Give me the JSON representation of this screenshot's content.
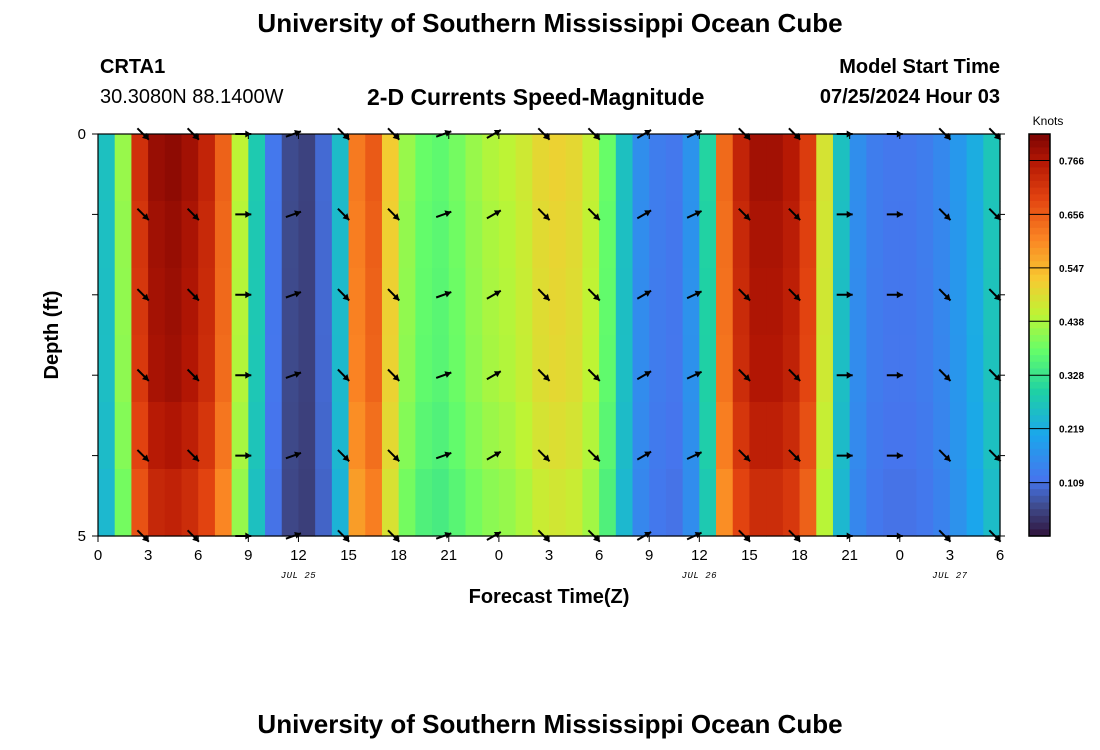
{
  "header": {
    "main_title": "University of Southern Mississippi Ocean Cube",
    "station_name": "CRTA1",
    "station_coords": "30.3080N  88.1400W",
    "subtitle": "2-D Currents Speed-Magnitude",
    "start_time_label": "Model Start Time",
    "start_time_value": "07/25/2024 Hour 03"
  },
  "footer": {
    "title": "University of Southern Mississippi Ocean Cube"
  },
  "chart_data": {
    "type": "heatmap",
    "title": "2-D Currents Speed-Magnitude",
    "xlabel": "Forecast Time(Z)",
    "ylabel": "Depth (ft)",
    "x_tick_labels": [
      "0",
      "3",
      "6",
      "9",
      "12",
      "15",
      "18",
      "21",
      "0",
      "3",
      "6",
      "9",
      "12",
      "15",
      "18",
      "21",
      "0",
      "3",
      "6"
    ],
    "x_date_labels": [
      {
        "label": "JUL 25",
        "hour": 12
      },
      {
        "label": "JUL 26",
        "hour": 36
      },
      {
        "label": "JUL 27",
        "hour": 51
      }
    ],
    "xlim_hours": [
      0,
      54
    ],
    "ylim_ft": [
      0,
      5
    ],
    "y_tick_labels": [
      "0",
      "5"
    ],
    "colorbar": {
      "unit": "Knots",
      "ticks": [
        "0.766",
        "0.656",
        "0.547",
        "0.438",
        "0.328",
        "0.219",
        "0.109"
      ],
      "tick_values": [
        0.766,
        0.656,
        0.547,
        0.438,
        0.328,
        0.219,
        0.109
      ],
      "range": [
        0.0,
        0.82
      ]
    },
    "speed_by_hour_knots": [
      0.26,
      0.42,
      0.72,
      0.79,
      0.8,
      0.78,
      0.74,
      0.65,
      0.45,
      0.28,
      0.12,
      0.06,
      0.05,
      0.1,
      0.25,
      0.62,
      0.66,
      0.52,
      0.42,
      0.38,
      0.37,
      0.39,
      0.42,
      0.44,
      0.45,
      0.47,
      0.5,
      0.51,
      0.5,
      0.46,
      0.38,
      0.26,
      0.16,
      0.13,
      0.12,
      0.17,
      0.3,
      0.64,
      0.74,
      0.78,
      0.78,
      0.76,
      0.7,
      0.48,
      0.26,
      0.16,
      0.13,
      0.12,
      0.12,
      0.13,
      0.15,
      0.18,
      0.22,
      0.27
    ],
    "depth_row_factors": [
      1.0,
      0.99,
      0.985,
      0.98,
      0.96,
      0.93
    ],
    "vector_times_hours": [
      2.7,
      5.7,
      8.7,
      11.7,
      14.7,
      17.7,
      20.7,
      23.7,
      26.7,
      29.7,
      32.7,
      35.7,
      38.7,
      41.7,
      44.7,
      47.7,
      50.7,
      53.7
    ],
    "vector_depths_ft": [
      0,
      1,
      2,
      3,
      4,
      5
    ],
    "vector_directions_deg": [
      135,
      135,
      90,
      70,
      135,
      135,
      70,
      60,
      135,
      135,
      60,
      65,
      135,
      135,
      90,
      90,
      135,
      135
    ]
  }
}
